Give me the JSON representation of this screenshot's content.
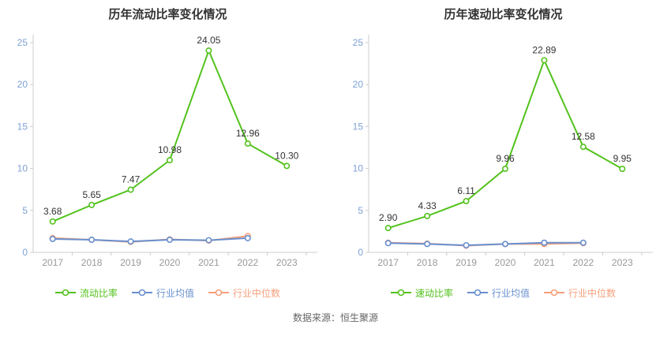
{
  "footer": {
    "source": "数据来源：恒生聚源"
  },
  "chart_data": [
    {
      "type": "line",
      "title": "历年流动比率变化情况",
      "categories": [
        "2017",
        "2018",
        "2019",
        "2020",
        "2021",
        "2022",
        "2023"
      ],
      "ylim": [
        0,
        25
      ],
      "yticks": [
        0,
        5,
        10,
        15,
        20,
        25
      ],
      "legend_position": "bottom",
      "grid": false,
      "series": [
        {
          "name": "流动比率",
          "color": "#53c21d",
          "values": [
            3.68,
            5.65,
            7.47,
            10.98,
            24.05,
            12.96,
            10.3
          ],
          "labels": [
            "3.68",
            "5.65",
            "7.47",
            "10.98",
            "24.05",
            "12.96",
            "10.30"
          ]
        },
        {
          "name": "行业均值",
          "color": "#6990cf",
          "values": [
            1.6,
            1.5,
            1.3,
            1.5,
            1.45,
            1.7,
            null
          ]
        },
        {
          "name": "行业中位数",
          "color": "#f5a07a",
          "values": [
            1.7,
            1.5,
            1.25,
            1.55,
            1.4,
            1.95,
            null
          ]
        }
      ]
    },
    {
      "type": "line",
      "title": "历年速动比率变化情况",
      "categories": [
        "2017",
        "2018",
        "2019",
        "2020",
        "2021",
        "2022",
        "2023"
      ],
      "ylim": [
        0,
        25
      ],
      "yticks": [
        0,
        5,
        10,
        15,
        20,
        25
      ],
      "legend_position": "bottom",
      "grid": false,
      "series": [
        {
          "name": "速动比率",
          "color": "#53c21d",
          "values": [
            2.9,
            4.33,
            6.11,
            9.96,
            22.89,
            12.58,
            9.95
          ],
          "labels": [
            "2.90",
            "4.33",
            "6.11",
            "9.96",
            "22.89",
            "12.58",
            "9.95"
          ]
        },
        {
          "name": "行业均值",
          "color": "#6990cf",
          "values": [
            1.1,
            1.0,
            0.85,
            1.0,
            1.15,
            1.15,
            null
          ]
        },
        {
          "name": "行业中位数",
          "color": "#f5a07a",
          "values": [
            1.15,
            1.05,
            0.8,
            1.0,
            1.0,
            1.1,
            null
          ]
        }
      ]
    }
  ]
}
